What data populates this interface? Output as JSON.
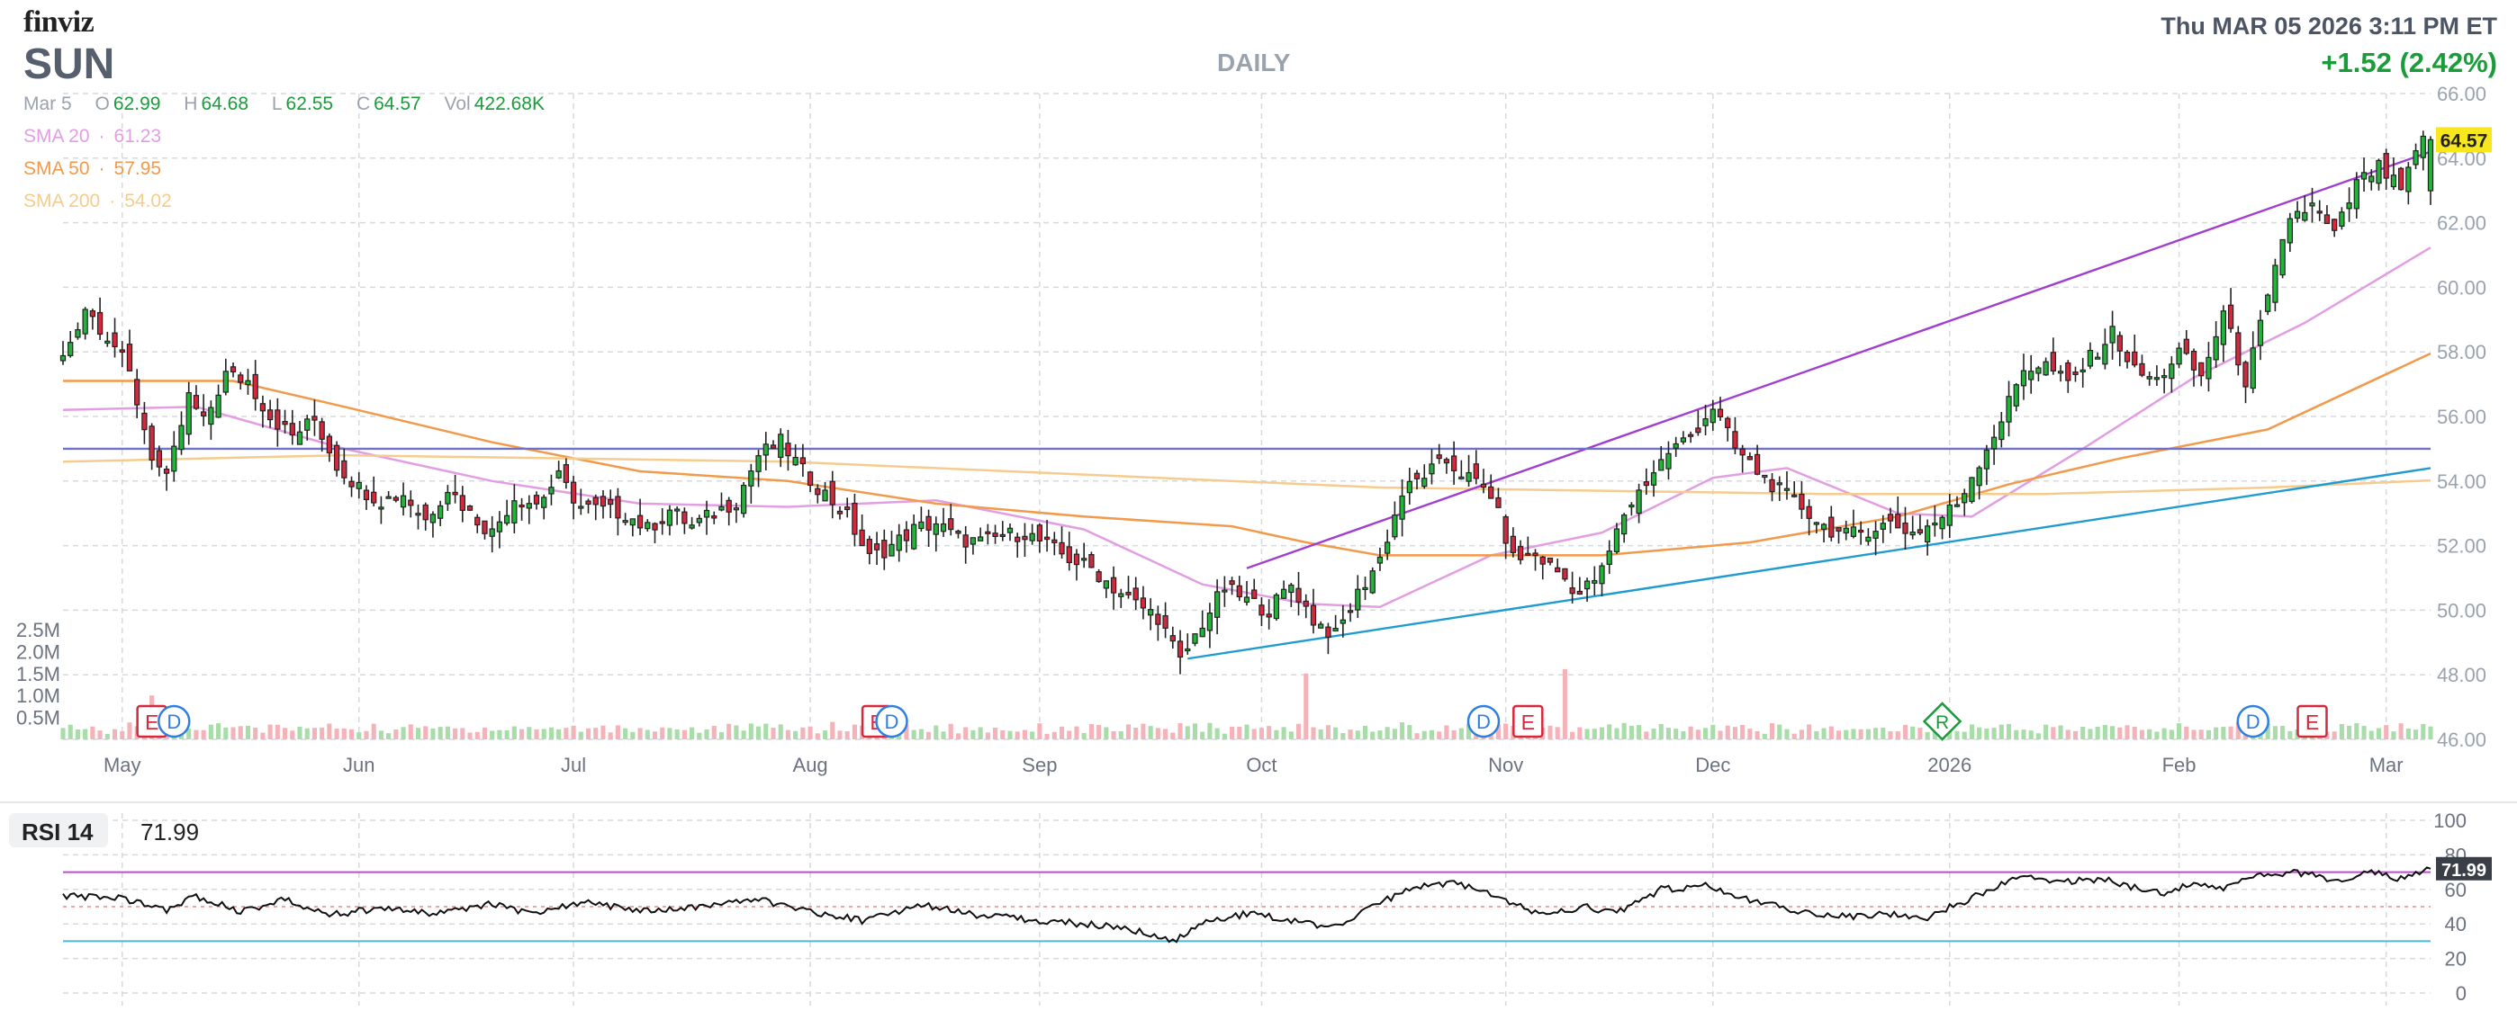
{
  "header": {
    "brand": "finviz",
    "ticker": "SUN",
    "timeframe": "DAILY",
    "datetime": "Thu MAR 05 2026 3:11 PM ET",
    "change": "+1.52 (2.42%)"
  },
  "ohlc": {
    "date": "Mar 5",
    "open_label": "O",
    "open": "62.99",
    "high_label": "H",
    "high": "64.68",
    "low_label": "L",
    "low": "62.55",
    "close_label": "C",
    "close": "64.57",
    "vol_label": "Vol",
    "volume": "422.68K"
  },
  "sma": {
    "sma20_label": "SMA 20",
    "sma20": "61.23",
    "sma50_label": "SMA 50",
    "sma50": "57.95",
    "sma200_label": "SMA 200",
    "sma200": "54.02",
    "dot": "·"
  },
  "rsi": {
    "label": "RSI 14",
    "value": "71.99"
  },
  "colors": {
    "up": "#22b33a",
    "down": "#d6283c",
    "grid": "#d6d9de",
    "sma20": "#e29ee3",
    "sma50": "#f29a4b",
    "sma200": "#f5cc8d",
    "upper_channel": "#a13ed0",
    "lower_channel": "#1f9bd1",
    "horizontal": "#6f72c8",
    "price_tag": "#f8e71c",
    "rsi_line": "#111111",
    "rsi_upper": "#c04ad0",
    "rsi_lower": "#4bb8d8"
  },
  "chart_data": [
    {
      "type": "candlestick",
      "title": "",
      "x_labels": [
        {
          "label": "May",
          "day": 30
        },
        {
          "label": "Jun",
          "day": 62
        },
        {
          "label": "Jul",
          "day": 91
        },
        {
          "label": "Aug",
          "day": 123
        },
        {
          "label": "Sep",
          "day": 154
        },
        {
          "label": "Oct",
          "day": 184
        },
        {
          "label": "Nov",
          "day": 217
        },
        {
          "label": "Dec",
          "day": 245
        },
        {
          "label": "2026",
          "day": 277
        },
        {
          "label": "Feb",
          "day": 308
        },
        {
          "label": "Mar",
          "day": 336
        }
      ],
      "x_range_days": [
        22,
        342
      ],
      "y_ticks": [
        "46.00",
        "48.00",
        "50.00",
        "52.00",
        "54.00",
        "56.00",
        "58.00",
        "60.00",
        "62.00",
        "64.00",
        "66.00"
      ],
      "ylim": [
        46,
        66
      ],
      "last_price": "64.57",
      "close_path": [
        {
          "day": 22,
          "close": 57.8
        },
        {
          "day": 25,
          "close": 59.4
        },
        {
          "day": 29,
          "close": 58.2
        },
        {
          "day": 31,
          "close": 57.3
        },
        {
          "day": 34,
          "close": 54.8
        },
        {
          "day": 36,
          "close": 54.0
        },
        {
          "day": 39,
          "close": 56.6
        },
        {
          "day": 41,
          "close": 55.8
        },
        {
          "day": 44,
          "close": 57.3
        },
        {
          "day": 47,
          "close": 57.1
        },
        {
          "day": 50,
          "close": 56.0
        },
        {
          "day": 53,
          "close": 55.4
        },
        {
          "day": 56,
          "close": 55.9
        },
        {
          "day": 59,
          "close": 54.5
        },
        {
          "day": 62,
          "close": 53.8
        },
        {
          "day": 65,
          "close": 53.4
        },
        {
          "day": 68,
          "close": 53.6
        },
        {
          "day": 71,
          "close": 52.8
        },
        {
          "day": 74,
          "close": 53.8
        },
        {
          "day": 77,
          "close": 53.0
        },
        {
          "day": 80,
          "close": 52.4
        },
        {
          "day": 83,
          "close": 53.5
        },
        {
          "day": 86,
          "close": 53.3
        },
        {
          "day": 89,
          "close": 54.1
        },
        {
          "day": 92,
          "close": 53.2
        },
        {
          "day": 95,
          "close": 53.1
        },
        {
          "day": 98,
          "close": 53.0
        },
        {
          "day": 101,
          "close": 52.5
        },
        {
          "day": 104,
          "close": 53.1
        },
        {
          "day": 107,
          "close": 52.6
        },
        {
          "day": 110,
          "close": 53.0
        },
        {
          "day": 113,
          "close": 53.4
        },
        {
          "day": 116,
          "close": 54.8
        },
        {
          "day": 119,
          "close": 55.2
        },
        {
          "day": 122,
          "close": 54.3
        },
        {
          "day": 125,
          "close": 53.6
        },
        {
          "day": 128,
          "close": 52.9
        },
        {
          "day": 131,
          "close": 51.6
        },
        {
          "day": 134,
          "close": 52.0
        },
        {
          "day": 137,
          "close": 52.5
        },
        {
          "day": 140,
          "close": 52.7
        },
        {
          "day": 143,
          "close": 52.2
        },
        {
          "day": 146,
          "close": 52.1
        },
        {
          "day": 149,
          "close": 52.3
        },
        {
          "day": 152,
          "close": 52.4
        },
        {
          "day": 155,
          "close": 52.0
        },
        {
          "day": 158,
          "close": 51.6
        },
        {
          "day": 161,
          "close": 51.3
        },
        {
          "day": 164,
          "close": 50.7
        },
        {
          "day": 167,
          "close": 50.2
        },
        {
          "day": 170,
          "close": 49.8
        },
        {
          "day": 173,
          "close": 48.4
        },
        {
          "day": 176,
          "close": 49.6
        },
        {
          "day": 179,
          "close": 50.7
        },
        {
          "day": 182,
          "close": 50.3
        },
        {
          "day": 185,
          "close": 50.0
        },
        {
          "day": 188,
          "close": 50.8
        },
        {
          "day": 191,
          "close": 49.7
        },
        {
          "day": 194,
          "close": 49.2
        },
        {
          "day": 197,
          "close": 50.5
        },
        {
          "day": 200,
          "close": 51.6
        },
        {
          "day": 203,
          "close": 53.6
        },
        {
          "day": 206,
          "close": 54.2
        },
        {
          "day": 209,
          "close": 54.6
        },
        {
          "day": 212,
          "close": 54.1
        },
        {
          "day": 215,
          "close": 53.6
        },
        {
          "day": 218,
          "close": 51.6
        },
        {
          "day": 221,
          "close": 51.7
        },
        {
          "day": 224,
          "close": 51.2
        },
        {
          "day": 227,
          "close": 50.5
        },
        {
          "day": 230,
          "close": 51.2
        },
        {
          "day": 233,
          "close": 53.0
        },
        {
          "day": 236,
          "close": 54.0
        },
        {
          "day": 239,
          "close": 54.9
        },
        {
          "day": 242,
          "close": 55.4
        },
        {
          "day": 245,
          "close": 56.3
        },
        {
          "day": 248,
          "close": 55.0
        },
        {
          "day": 251,
          "close": 54.3
        },
        {
          "day": 254,
          "close": 53.7
        },
        {
          "day": 257,
          "close": 53.2
        },
        {
          "day": 260,
          "close": 52.6
        },
        {
          "day": 263,
          "close": 52.3
        },
        {
          "day": 266,
          "close": 52.5
        },
        {
          "day": 269,
          "close": 52.7
        },
        {
          "day": 272,
          "close": 52.4
        },
        {
          "day": 275,
          "close": 52.7
        },
        {
          "day": 278,
          "close": 53.3
        },
        {
          "day": 281,
          "close": 54.6
        },
        {
          "day": 284,
          "close": 55.9
        },
        {
          "day": 287,
          "close": 57.5
        },
        {
          "day": 290,
          "close": 57.6
        },
        {
          "day": 293,
          "close": 57.0
        },
        {
          "day": 296,
          "close": 57.8
        },
        {
          "day": 299,
          "close": 58.6
        },
        {
          "day": 302,
          "close": 57.4
        },
        {
          "day": 305,
          "close": 57.1
        },
        {
          "day": 308,
          "close": 58.0
        },
        {
          "day": 311,
          "close": 57.2
        },
        {
          "day": 314,
          "close": 59.2
        },
        {
          "day": 317,
          "close": 57.1
        },
        {
          "day": 320,
          "close": 59.6
        },
        {
          "day": 323,
          "close": 62.2
        },
        {
          "day": 326,
          "close": 62.5
        },
        {
          "day": 329,
          "close": 61.6
        },
        {
          "day": 332,
          "close": 63.2
        },
        {
          "day": 335,
          "close": 63.7
        },
        {
          "day": 338,
          "close": 63.0
        },
        {
          "day": 341,
          "close": 64.57
        }
      ],
      "sma_series": [
        {
          "name": "SMA 20",
          "color_key": "sma20",
          "points": [
            [
              22,
              56.2
            ],
            [
              40,
              56.3
            ],
            [
              60,
              55.0
            ],
            [
              80,
              54.0
            ],
            [
              100,
              53.3
            ],
            [
              120,
              53.2
            ],
            [
              140,
              53.4
            ],
            [
              160,
              52.5
            ],
            [
              176,
              50.8
            ],
            [
              190,
              50.2
            ],
            [
              200,
              50.1
            ],
            [
              215,
              51.7
            ],
            [
              230,
              52.4
            ],
            [
              245,
              54.1
            ],
            [
              255,
              54.4
            ],
            [
              270,
              53.0
            ],
            [
              280,
              52.9
            ],
            [
              295,
              55.0
            ],
            [
              310,
              57.2
            ],
            [
              325,
              58.9
            ],
            [
              342,
              61.23
            ]
          ]
        },
        {
          "name": "SMA 50",
          "color_key": "sma50",
          "points": [
            [
              22,
              57.1
            ],
            [
              45,
              57.1
            ],
            [
              60,
              56.3
            ],
            [
              80,
              55.2
            ],
            [
              100,
              54.3
            ],
            [
              120,
              54.0
            ],
            [
              140,
              53.3
            ],
            [
              160,
              52.9
            ],
            [
              180,
              52.6
            ],
            [
              190,
              52.1
            ],
            [
              200,
              51.7
            ],
            [
              215,
              51.7
            ],
            [
              230,
              51.7
            ],
            [
              250,
              52.1
            ],
            [
              270,
              52.9
            ],
            [
              285,
              53.9
            ],
            [
              300,
              54.7
            ],
            [
              320,
              55.6
            ],
            [
              342,
              57.95
            ]
          ]
        },
        {
          "name": "SMA 200",
          "color_key": "sma200",
          "points": [
            [
              22,
              54.6
            ],
            [
              60,
              54.8
            ],
            [
              120,
              54.6
            ],
            [
              160,
              54.2
            ],
            [
              200,
              53.8
            ],
            [
              230,
              53.7
            ],
            [
              260,
              53.6
            ],
            [
              290,
              53.6
            ],
            [
              320,
              53.8
            ],
            [
              342,
              54.02
            ]
          ]
        }
      ],
      "trendlines": [
        {
          "color_key": "upper_channel",
          "from": [
            182,
            51.3
          ],
          "to": [
            342,
            64.2
          ]
        },
        {
          "color_key": "lower_channel",
          "from": [
            174,
            48.5
          ],
          "to": [
            342,
            54.4
          ]
        },
        {
          "color_key": "horizontal",
          "from": [
            22,
            55.0
          ],
          "to": [
            342,
            55.0
          ]
        }
      ],
      "volume": {
        "y_ticks": [
          "0.5M",
          "1.0M",
          "1.5M",
          "2.0M",
          "2.5M"
        ],
        "ylim": [
          0,
          2.5
        ],
        "spikes": [
          {
            "day": 34,
            "value": 1.0
          },
          {
            "day": 190,
            "value": 1.5
          },
          {
            "day": 225,
            "value": 1.6
          }
        ]
      },
      "events": [
        {
          "day": 34,
          "letter": "E",
          "kind": "earnings"
        },
        {
          "day": 37,
          "letter": "D",
          "kind": "dividend"
        },
        {
          "day": 132,
          "letter": "E",
          "kind": "earnings"
        },
        {
          "day": 134,
          "letter": "D",
          "kind": "dividend"
        },
        {
          "day": 214,
          "letter": "D",
          "kind": "dividend"
        },
        {
          "day": 220,
          "letter": "E",
          "kind": "earnings"
        },
        {
          "day": 276,
          "letter": "R",
          "kind": "rating"
        },
        {
          "day": 318,
          "letter": "D",
          "kind": "dividend"
        },
        {
          "day": 326,
          "letter": "E",
          "kind": "earnings"
        }
      ]
    },
    {
      "type": "line",
      "title": "",
      "series": [
        {
          "name": "RSI 14",
          "points": [
            [
              22,
              56
            ],
            [
              30,
              55
            ],
            [
              36,
              48
            ],
            [
              40,
              56
            ],
            [
              46,
              47
            ],
            [
              52,
              54
            ],
            [
              58,
              45
            ],
            [
              66,
              50
            ],
            [
              72,
              45
            ],
            [
              80,
              52
            ],
            [
              86,
              45
            ],
            [
              92,
              53
            ],
            [
              100,
              47
            ],
            [
              108,
              50
            ],
            [
              116,
              54
            ],
            [
              122,
              48
            ],
            [
              130,
              42
            ],
            [
              138,
              51
            ],
            [
              146,
              45
            ],
            [
              154,
              42
            ],
            [
              160,
              40
            ],
            [
              166,
              37
            ],
            [
              172,
              30
            ],
            [
              176,
              40
            ],
            [
              182,
              46
            ],
            [
              188,
              42
            ],
            [
              194,
              38
            ],
            [
              200,
              52
            ],
            [
              205,
              62
            ],
            [
              210,
              64
            ],
            [
              216,
              55
            ],
            [
              222,
              45
            ],
            [
              228,
              50
            ],
            [
              232,
              46
            ],
            [
              238,
              60
            ],
            [
              244,
              62
            ],
            [
              250,
              54
            ],
            [
              256,
              48
            ],
            [
              262,
              44
            ],
            [
              268,
              46
            ],
            [
              274,
              44
            ],
            [
              280,
              55
            ],
            [
              286,
              67
            ],
            [
              292,
              64
            ],
            [
              298,
              66
            ],
            [
              302,
              61
            ],
            [
              306,
              57
            ],
            [
              310,
              64
            ],
            [
              314,
              60
            ],
            [
              318,
              68
            ],
            [
              324,
              70
            ],
            [
              330,
              64
            ],
            [
              334,
              70
            ],
            [
              338,
              66
            ],
            [
              342,
              71.99
            ]
          ]
        }
      ],
      "y_ticks": [
        "0",
        "20",
        "40",
        "60",
        "80",
        "100"
      ],
      "ylim": [
        0,
        100
      ],
      "ref_lines": [
        70,
        30
      ],
      "mid_line": 50,
      "last_value": "71.99"
    }
  ]
}
